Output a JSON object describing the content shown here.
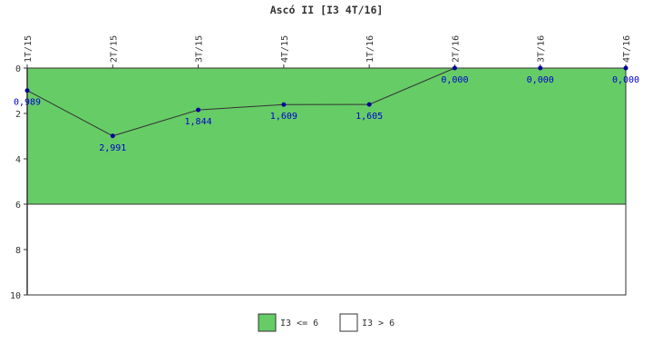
{
  "chart_data": {
    "type": "line",
    "title": "Ascó II [I3 4T/16]",
    "categories": [
      "1T/15",
      "2T/15",
      "3T/15",
      "4T/15",
      "1T/16",
      "2T/16",
      "3T/16",
      "4T/16"
    ],
    "values": [
      0.989,
      2.991,
      1.844,
      1.609,
      1.605,
      0.0,
      0.0,
      0.0
    ],
    "value_labels": [
      "0,989",
      "2,991",
      "1,844",
      "1,609",
      "1,605",
      "0,000",
      "0,000",
      "0,000"
    ],
    "y_ticks": [
      "0",
      "2",
      "4",
      "6",
      "8",
      "10"
    ],
    "ylim": [
      10,
      0
    ],
    "y_inverted": true,
    "threshold": 6,
    "bands": [
      {
        "label": "I3 <= 6",
        "from": 0,
        "to": 6,
        "color": "#66cc66"
      },
      {
        "label": "I3 > 6",
        "from": 6,
        "to": 10,
        "color": "#ffffff"
      }
    ],
    "line_color": "#333333",
    "marker_color": "#000099",
    "label_color": "#0000cc",
    "xlabel": "",
    "ylabel": "",
    "grid": false,
    "legend_position": "bottom"
  }
}
